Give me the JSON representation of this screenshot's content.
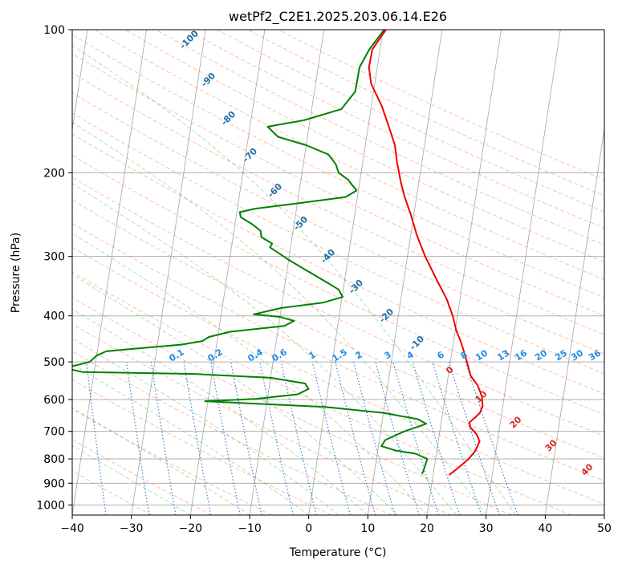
{
  "chart_data": {
    "type": "line",
    "title": "wetPf2_C2E1.2025.203.06.14.E26",
    "xlabel": "Temperature (°C)",
    "ylabel": "Pressure (hPa)",
    "xlim": [
      -40,
      50
    ],
    "ylim": [
      1050,
      100
    ],
    "y_scale": "log",
    "grid": true,
    "x_ticks": [
      -40,
      -30,
      -20,
      -10,
      0,
      10,
      20,
      30,
      40,
      50
    ],
    "y_ticks": [
      100,
      200,
      300,
      400,
      500,
      600,
      700,
      800,
      900,
      1000
    ],
    "colors": {
      "temperature": "#ee0000",
      "dewpoint": "#008000",
      "mixing_ratio": "#1f77d4",
      "moist_adiabat": "#2ca02c",
      "dry_adiabat": "#ff7f50",
      "isotherm": "#808080"
    },
    "series": [
      {
        "color": "#ee0000",
        "points": [
          [
            0.5,
            100
          ],
          [
            -1.3,
            110
          ],
          [
            -1.4,
            120
          ],
          [
            -0.6,
            130
          ],
          [
            1.8,
            145
          ],
          [
            3.5,
            160
          ],
          [
            5,
            175
          ],
          [
            5.8,
            190
          ],
          [
            7,
            210
          ],
          [
            8,
            225
          ],
          [
            9.5,
            245
          ],
          [
            11,
            270
          ],
          [
            13,
            300
          ],
          [
            15.5,
            335
          ],
          [
            17.8,
            370
          ],
          [
            19.2,
            400
          ],
          [
            20.2,
            430
          ],
          [
            21.1,
            450
          ],
          [
            22,
            475
          ],
          [
            22.8,
            500
          ],
          [
            23.8,
            535
          ],
          [
            25.2,
            560
          ],
          [
            26.2,
            590
          ],
          [
            26.6,
            620
          ],
          [
            26.3,
            640
          ],
          [
            25.6,
            655
          ],
          [
            24.8,
            670
          ],
          [
            25,
            685
          ],
          [
            26.3,
            710
          ],
          [
            27,
            735
          ],
          [
            26.5,
            770
          ],
          [
            25.6,
            800
          ],
          [
            24.3,
            830
          ],
          [
            23.4,
            850
          ],
          [
            22.7,
            865
          ]
        ]
      },
      {
        "color": "#008000",
        "points": [
          [
            0.2,
            100
          ],
          [
            -1.8,
            110
          ],
          [
            -3,
            120
          ],
          [
            -3.1,
            135
          ],
          [
            -5,
            147
          ],
          [
            -11,
            155
          ],
          [
            -17,
            160
          ],
          [
            -15,
            168
          ],
          [
            -10,
            175
          ],
          [
            -6,
            183
          ],
          [
            -4.5,
            192
          ],
          [
            -3.8,
            200
          ],
          [
            -2,
            207
          ],
          [
            -0.3,
            218
          ],
          [
            -2,
            225
          ],
          [
            -10,
            232
          ],
          [
            -17,
            238
          ],
          [
            -19.5,
            242
          ],
          [
            -19.2,
            248
          ],
          [
            -17,
            257
          ],
          [
            -15.5,
            265
          ],
          [
            -15.2,
            273
          ],
          [
            -13.2,
            282
          ],
          [
            -13.5,
            287
          ],
          [
            -12.5,
            292
          ],
          [
            -10,
            305
          ],
          [
            -6.5,
            322
          ],
          [
            -3,
            340
          ],
          [
            -0.8,
            352
          ],
          [
            0.1,
            365
          ],
          [
            -3,
            375
          ],
          [
            -10,
            385
          ],
          [
            -14.5,
            397
          ],
          [
            -10,
            402
          ],
          [
            -7.5,
            410
          ],
          [
            -9,
            420
          ],
          [
            -18,
            432
          ],
          [
            -21.5,
            443
          ],
          [
            -22.5,
            452
          ],
          [
            -26,
            460
          ],
          [
            -33,
            468
          ],
          [
            -38.5,
            475
          ],
          [
            -40,
            485
          ],
          [
            -41,
            500
          ],
          [
            -45,
            515
          ],
          [
            -42,
            525
          ],
          [
            -23,
            530
          ],
          [
            -10,
            540
          ],
          [
            -4,
            555
          ],
          [
            -3.3,
            570
          ],
          [
            -5,
            585
          ],
          [
            -12,
            598
          ],
          [
            -20.5,
            605
          ],
          [
            -12,
            612
          ],
          [
            0,
            622
          ],
          [
            10,
            640
          ],
          [
            16,
            660
          ],
          [
            17.5,
            675
          ],
          [
            14,
            700
          ],
          [
            11,
            730
          ],
          [
            10.5,
            752
          ],
          [
            13,
            768
          ],
          [
            16.5,
            780
          ],
          [
            18.6,
            800
          ],
          [
            18.3,
            840
          ],
          [
            18.1,
            860
          ]
        ]
      }
    ],
    "annotations": {
      "mixing_ratio_labels": [
        "0.1",
        "0.2",
        "0.4",
        "0.6",
        "1",
        "1.5",
        "2",
        "3",
        "4",
        "6",
        "8",
        "10",
        "13",
        "16",
        "20",
        "25",
        "30",
        "36"
      ],
      "moist_adiabat_labels": [
        "-100",
        "-90",
        "-80",
        "-70",
        "-60",
        "-50",
        "-40",
        "-30",
        "-20",
        "-10",
        "0",
        "10",
        "20",
        "30",
        "40"
      ]
    }
  }
}
